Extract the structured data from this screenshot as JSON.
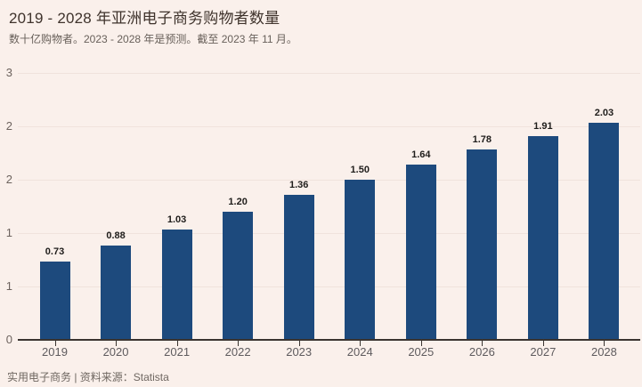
{
  "header": {
    "title": "2019 - 2028 年亚洲电子商务购物者数量",
    "subtitle": "数十亿购物者。2023 - 2028 年是预测。截至 2023 年 11 月。"
  },
  "footer": {
    "text": "实用电子商务 | 资料来源：Statista"
  },
  "colors": {
    "background": "#faf0eb",
    "bar": "#1d4a7d",
    "axis": "#3a3430",
    "gridline": "#f0e2dc"
  },
  "chart_data": {
    "type": "bar",
    "title": "2019 - 2028 年亚洲电子商务购物者数量",
    "subtitle": "数十亿购物者。2023 - 2028 年是预测。截至 2023 年 11 月。",
    "categories": [
      "2019",
      "2020",
      "2021",
      "2022",
      "2023",
      "2024",
      "2025",
      "2026",
      "2027",
      "2028"
    ],
    "values": [
      0.73,
      0.88,
      1.03,
      1.2,
      1.36,
      1.5,
      1.64,
      1.78,
      1.91,
      2.03
    ],
    "value_labels": [
      "0.73",
      "0.88",
      "1.03",
      "1.20",
      "1.36",
      "1.50",
      "1.64",
      "1.78",
      "1.91",
      "2.03"
    ],
    "xlabel": "",
    "ylabel": "",
    "ylim": [
      0,
      2.5
    ],
    "yticks": [
      {
        "value": 0.0,
        "label": "0"
      },
      {
        "value": 0.5,
        "label": "1"
      },
      {
        "value": 1.0,
        "label": "1"
      },
      {
        "value": 1.5,
        "label": "2"
      },
      {
        "value": 2.0,
        "label": "2"
      },
      {
        "value": 2.5,
        "label": "3"
      }
    ],
    "grid": true,
    "legend": false,
    "data_labels": true
  }
}
